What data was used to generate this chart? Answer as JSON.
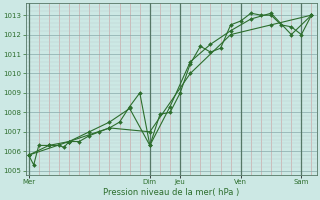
{
  "xlabel": "Pression niveau de la mer( hPa )",
  "background_color": "#cce8e4",
  "line_color": "#2d6e2d",
  "grid_major_color": "#88aaaa",
  "grid_minor_color": "#bbcccc",
  "vline_major_color": "#557766",
  "vline_minor_color": "#ccaaaa",
  "ylim": [
    1004.8,
    1013.6
  ],
  "yticks": [
    1005,
    1006,
    1007,
    1008,
    1009,
    1010,
    1011,
    1012,
    1013
  ],
  "day_labels": [
    "Mer",
    "Dim",
    "Jeu",
    "Ven",
    "Sam"
  ],
  "day_positions": [
    0,
    12,
    15,
    21,
    27
  ],
  "xmin": -0.3,
  "xmax": 28.5,
  "n_cols": 28,
  "series1_x": [
    0,
    0.5,
    1,
    2,
    3,
    3.5,
    4,
    5,
    6,
    7,
    8,
    9,
    10,
    11,
    12,
    13,
    14,
    15,
    16,
    17,
    18,
    19,
    20,
    21,
    22,
    23,
    24,
    25,
    26,
    27,
    28
  ],
  "series1_y": [
    1005.8,
    1005.3,
    1006.3,
    1006.3,
    1006.3,
    1006.2,
    1006.5,
    1006.5,
    1006.8,
    1007.0,
    1007.2,
    1007.5,
    1008.3,
    1009.0,
    1006.3,
    1007.9,
    1008.0,
    1009.0,
    1010.5,
    1011.4,
    1011.1,
    1011.3,
    1012.5,
    1012.7,
    1013.1,
    1013.0,
    1013.0,
    1012.5,
    1012.4,
    1012.0,
    1013.0
  ],
  "series2_x": [
    0,
    2,
    4,
    6,
    8,
    10,
    12,
    14,
    16,
    18,
    20,
    22,
    24,
    26,
    28
  ],
  "series2_y": [
    1005.8,
    1006.3,
    1006.5,
    1007.0,
    1007.5,
    1008.2,
    1006.3,
    1008.3,
    1010.6,
    1011.5,
    1012.2,
    1012.8,
    1013.1,
    1012.0,
    1013.0
  ],
  "series3_x": [
    0,
    4,
    8,
    12,
    16,
    20,
    24,
    28
  ],
  "series3_y": [
    1005.8,
    1006.5,
    1007.2,
    1007.0,
    1010.0,
    1012.0,
    1012.5,
    1013.0
  ]
}
